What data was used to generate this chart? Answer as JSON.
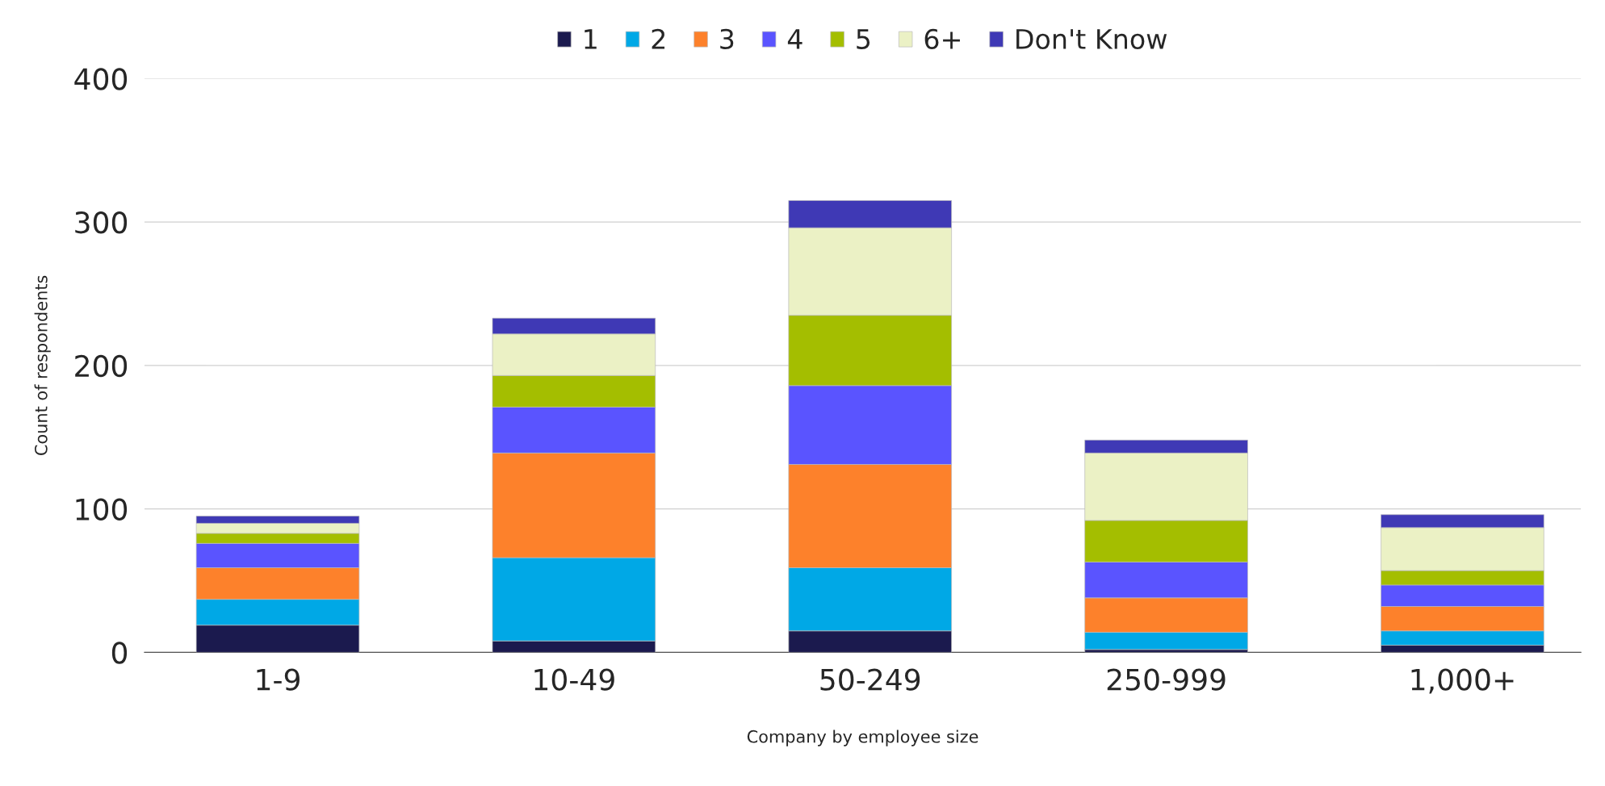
{
  "chart_data": {
    "type": "bar",
    "stacked": true,
    "xlabel": "Company by employee size",
    "ylabel": "Count of respondents",
    "categories": [
      "1-9",
      "10-49",
      "50-249",
      "250-999",
      "1,000+"
    ],
    "series": [
      {
        "name": "1",
        "color": "#1b1a4e",
        "values": [
          19,
          8,
          15,
          2,
          5
        ]
      },
      {
        "name": "2",
        "color": "#00a8e6",
        "values": [
          18,
          58,
          44,
          12,
          10
        ]
      },
      {
        "name": "3",
        "color": "#fd812b",
        "values": [
          22,
          73,
          72,
          24,
          17
        ]
      },
      {
        "name": "4",
        "color": "#5a54ff",
        "values": [
          17,
          32,
          55,
          25,
          15
        ]
      },
      {
        "name": "5",
        "color": "#a4be00",
        "values": [
          7,
          22,
          49,
          29,
          10
        ]
      },
      {
        "name": "6+",
        "color": "#ebf1c5",
        "values": [
          7,
          29,
          61,
          47,
          30
        ]
      },
      {
        "name": "Don't Know",
        "color": "#3f39b5",
        "values": [
          5,
          11,
          19,
          9,
          9
        ]
      }
    ],
    "ylim": [
      0,
      400
    ],
    "yticks": [
      0,
      100,
      200,
      300,
      400
    ],
    "grid": "y",
    "legend": "top"
  }
}
